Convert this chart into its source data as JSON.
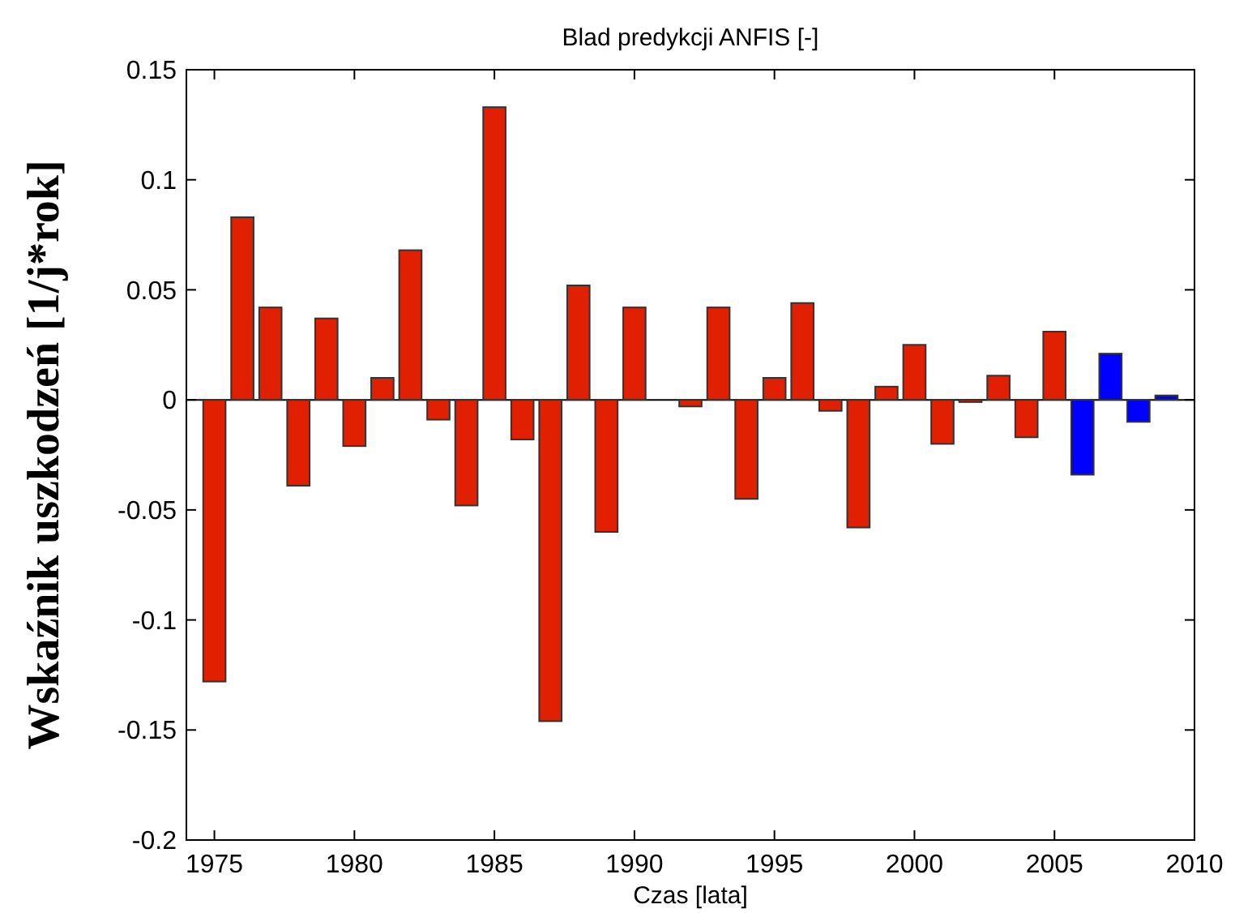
{
  "chart_data": {
    "type": "bar",
    "title": "Blad predykcji ANFIS [-]",
    "xlabel": "Czas [lata]",
    "ylabel": "Wskaźnik uszkodzeń [1/j*rok]",
    "x": [
      1975,
      1976,
      1977,
      1978,
      1979,
      1980,
      1981,
      1982,
      1983,
      1984,
      1985,
      1986,
      1987,
      1988,
      1989,
      1990,
      1991,
      1992,
      1993,
      1994,
      1995,
      1996,
      1997,
      1998,
      1999,
      2000,
      2001,
      2002,
      2003,
      2004,
      2005,
      2006,
      2007,
      2008,
      2009
    ],
    "values": [
      -0.128,
      0.083,
      0.042,
      -0.039,
      0.037,
      -0.021,
      0.01,
      0.068,
      -0.009,
      -0.048,
      0.133,
      -0.018,
      -0.146,
      0.052,
      -0.06,
      0.042,
      0,
      -0.003,
      0.042,
      -0.045,
      0.01,
      0.044,
      -0.005,
      -0.058,
      0.006,
      0.025,
      -0.02,
      -0.001,
      0.011,
      -0.017,
      0.031,
      -0.034,
      0.021,
      -0.01,
      0.002
    ],
    "colors": [
      "#e02000",
      "#e02000",
      "#e02000",
      "#e02000",
      "#e02000",
      "#e02000",
      "#e02000",
      "#e02000",
      "#e02000",
      "#e02000",
      "#e02000",
      "#e02000",
      "#e02000",
      "#e02000",
      "#e02000",
      "#e02000",
      "#e02000",
      "#e02000",
      "#e02000",
      "#e02000",
      "#e02000",
      "#e02000",
      "#e02000",
      "#e02000",
      "#e02000",
      "#e02000",
      "#e02000",
      "#e02000",
      "#e02000",
      "#e02000",
      "#e02000",
      "#0000ff",
      "#0000ff",
      "#0000ff",
      "#0000ff"
    ],
    "xlim": [
      1974,
      2010
    ],
    "xticks": [
      1975,
      1980,
      1985,
      1990,
      1995,
      2000,
      2005,
      2010
    ],
    "ylim": [
      -0.2,
      0.15
    ],
    "yticks": [
      -0.2,
      -0.15,
      -0.1,
      -0.05,
      0,
      0.05,
      0.1,
      0.15
    ]
  }
}
